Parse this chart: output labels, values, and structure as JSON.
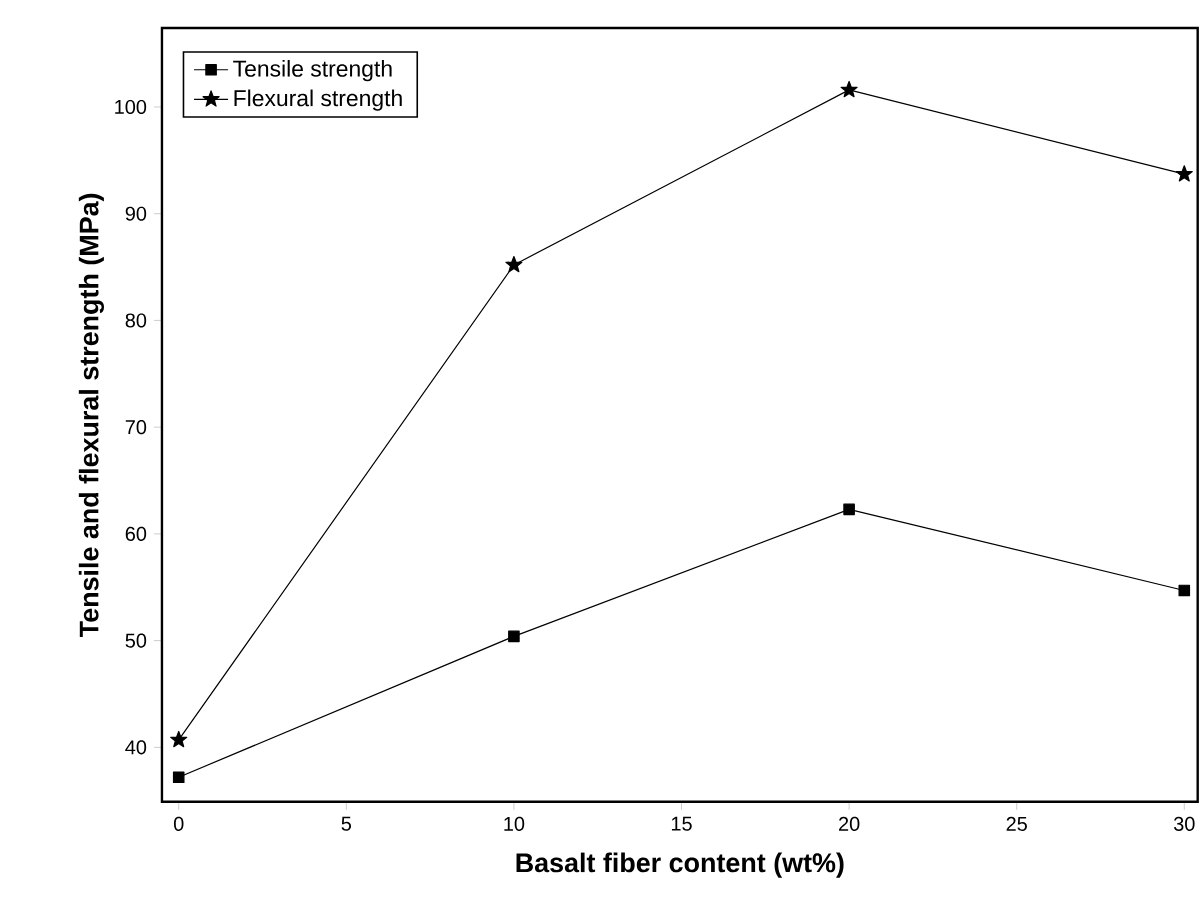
{
  "chart_data": {
    "type": "line",
    "xlabel": "Basalt fiber content (wt%)",
    "ylabel": "Tensile and flexural strength (MPa)",
    "x": [
      0,
      10,
      20,
      30
    ],
    "series": [
      {
        "name": "Tensile strength",
        "color": "#000000",
        "marker": "square",
        "values": [
          37.2,
          50.4,
          62.3,
          54.7
        ]
      },
      {
        "name": "Flexural strength",
        "color": "#000000",
        "marker": "star",
        "values": [
          40.7,
          85.2,
          101.6,
          93.7
        ]
      }
    ],
    "xlim": [
      -0.5,
      30.4
    ],
    "ylim": [
      34.9,
      107.4
    ],
    "xticks": [
      0,
      5,
      10,
      15,
      20,
      25,
      30
    ],
    "yticks": [
      40,
      50,
      60,
      70,
      80,
      90,
      100
    ],
    "legend": "top left",
    "line_style": "solid"
  }
}
